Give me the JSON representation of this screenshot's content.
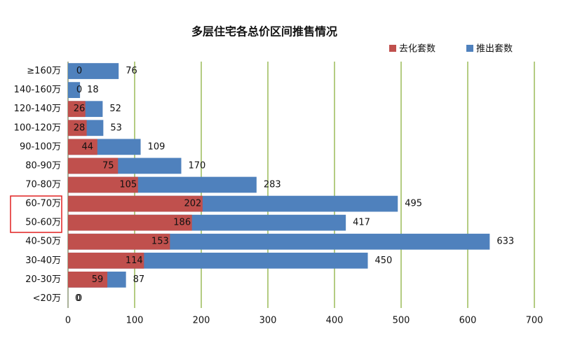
{
  "chart_data": {
    "type": "bar",
    "orientation": "horizontal",
    "overlap": true,
    "title": "多层住宅各总价区间推售情况",
    "categories": [
      "≥160万",
      "140-160万",
      "120-140万",
      "100-120万",
      "90-100万",
      "80-90万",
      "70-80万",
      "60-70万",
      "50-60万",
      "40-50万",
      "30-40万",
      "20-30万",
      "<20万"
    ],
    "series": [
      {
        "name": "去化套数",
        "color": "#c0504d",
        "values": [
          0,
          0,
          26,
          28,
          44,
          75,
          105,
          202,
          186,
          153,
          114,
          59,
          0
        ]
      },
      {
        "name": "推出套数",
        "color": "#4f81bd",
        "values": [
          76,
          18,
          52,
          53,
          109,
          170,
          283,
          495,
          417,
          633,
          450,
          87,
          0
        ]
      }
    ],
    "xlim": [
      0,
      700
    ],
    "xticks": [
      0,
      100,
      200,
      300,
      400,
      500,
      600,
      700
    ],
    "grid": true,
    "grid_color": "#9bbb59",
    "legend": "top-right"
  }
}
